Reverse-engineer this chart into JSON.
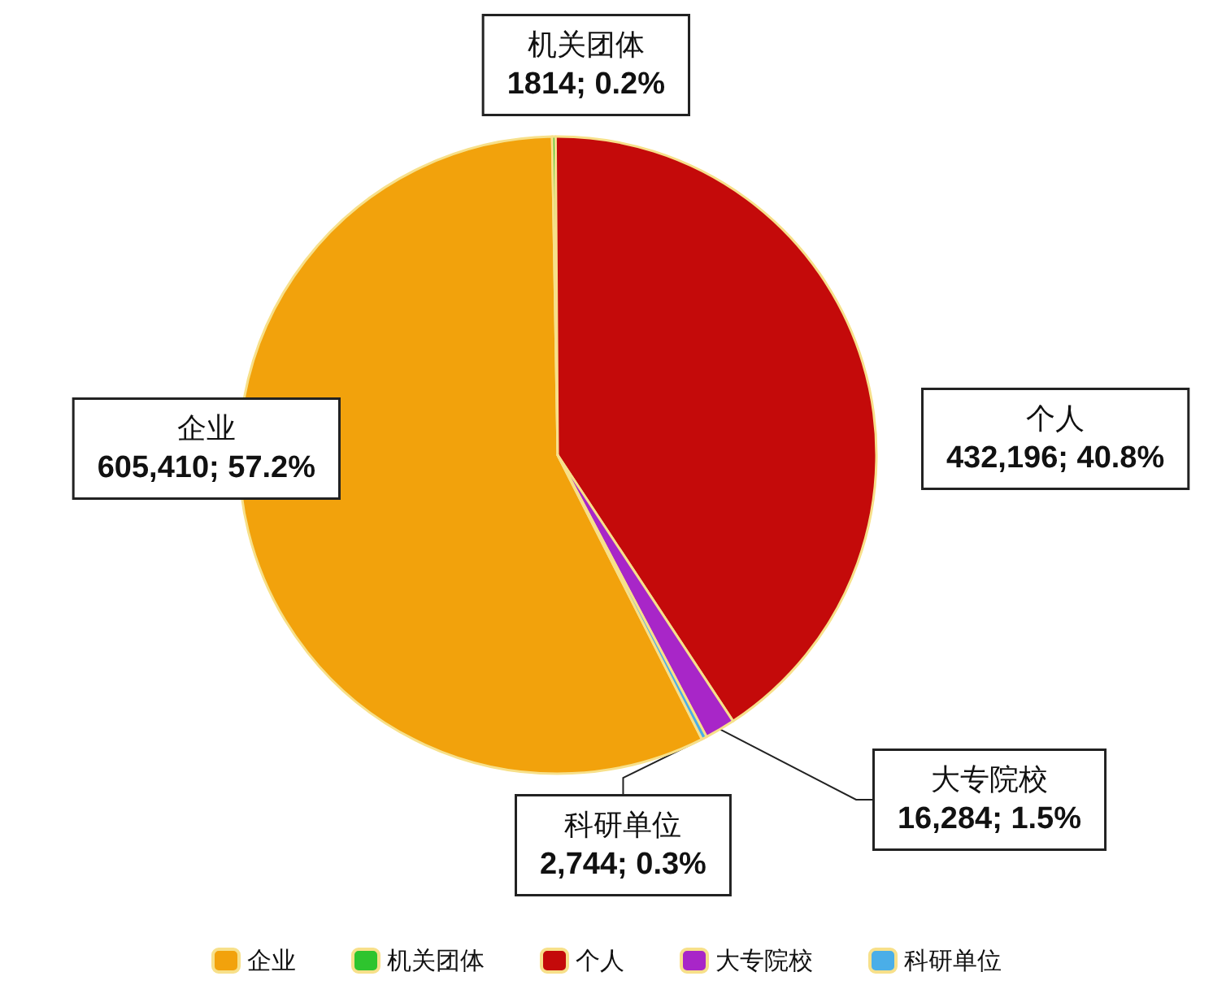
{
  "chart_data": {
    "type": "pie",
    "categories": [
      "企业",
      "机关团体",
      "个人",
      "大专院校",
      "科研单位"
    ],
    "values": [
      605410,
      1814,
      432196,
      16284,
      2744
    ],
    "value_labels": [
      "605,410; 57.2%",
      "1814; 0.2%",
      "432,196; 40.8%",
      "16,284; 1.5%",
      "2,744; 0.3%"
    ],
    "colors": [
      "#f2a20c",
      "#2ec42e",
      "#c40a0a",
      "#a826c8",
      "#4aaee8"
    ],
    "legend": "bottom"
  }
}
